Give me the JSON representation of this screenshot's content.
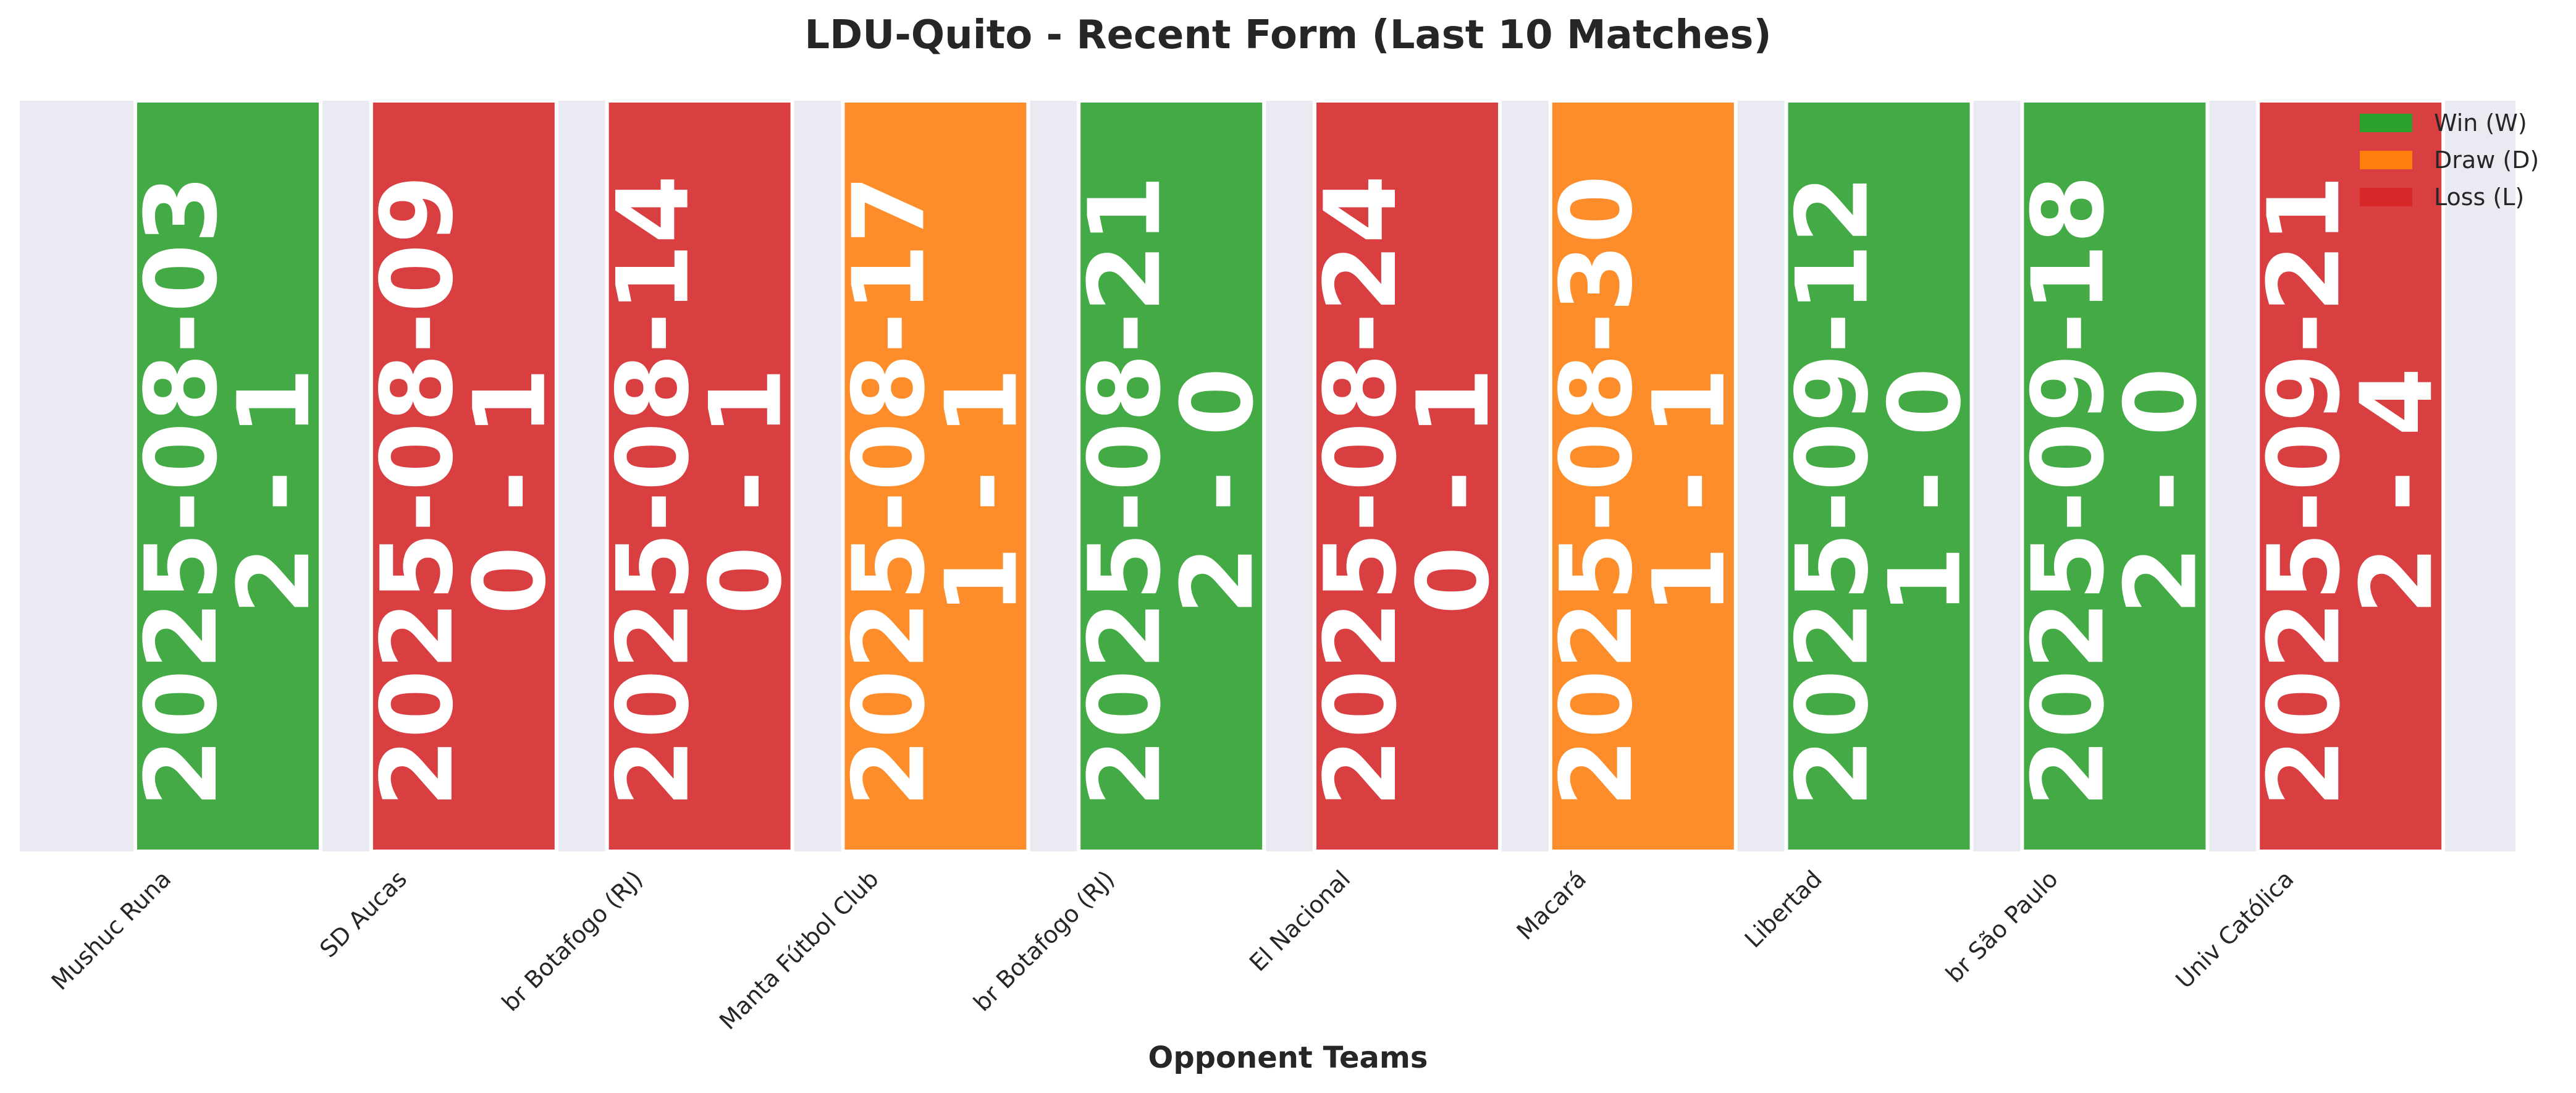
{
  "chart_data": {
    "type": "bar",
    "title": "LDU-Quito - Recent Form (Last 10 Matches)",
    "xlabel": "Opponent Teams",
    "ylabel": "",
    "categories": [
      "Mushuc Runa",
      "SD Aucas",
      "br Botafogo (RJ)",
      "Manta Fútbol Club",
      "br Botafogo (RJ)",
      "El Nacional",
      "Macará",
      "Libertad",
      "br São Paulo",
      "Univ Católica"
    ],
    "values": [
      1,
      1,
      1,
      1,
      1,
      1,
      1,
      1,
      1,
      1
    ],
    "ylim": [
      0,
      1
    ],
    "dates": [
      "2025-08-03",
      "2025-08-09",
      "2025-08-14",
      "2025-08-17",
      "2025-08-21",
      "2025-08-24",
      "2025-08-30",
      "2025-09-12",
      "2025-09-18",
      "2025-09-21"
    ],
    "scores": [
      "2 - 1",
      "0 - 1",
      "0 - 1",
      "1 - 1",
      "2 - 0",
      "0 - 1",
      "1 - 1",
      "1 - 0",
      "2 - 0",
      "2 - 4"
    ],
    "results": [
      "W",
      "L",
      "L",
      "D",
      "W",
      "L",
      "D",
      "W",
      "W",
      "L"
    ],
    "legend": [
      {
        "key": "W",
        "label": "Win (W)",
        "color": "#2ca02c"
      },
      {
        "key": "D",
        "label": "Draw (D)",
        "color": "#ff7f0e"
      },
      {
        "key": "L",
        "label": "Loss (L)",
        "color": "#d62728"
      }
    ],
    "legend_position": "top-right",
    "grid": false
  }
}
